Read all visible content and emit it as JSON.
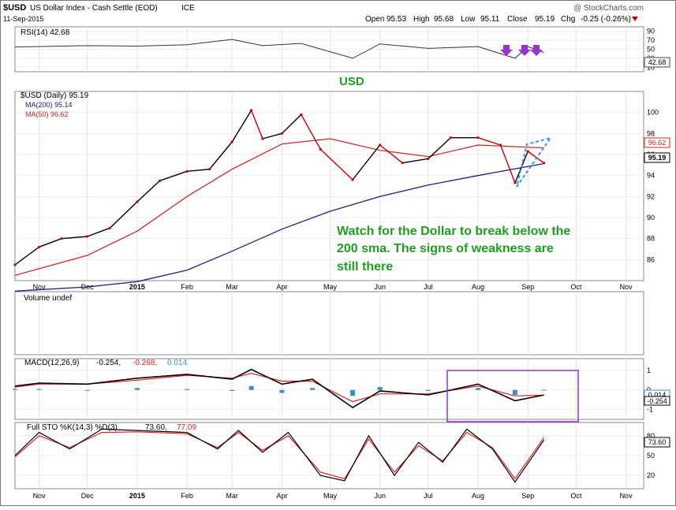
{
  "header": {
    "symbol": "$USD",
    "name": "US Dollar Index - Cash Settle (EOD)",
    "exchange": "ICE",
    "date": "11-Sep-2015",
    "source": "@ StockCharts.com",
    "open_label": "Open",
    "open": "95.53",
    "high_label": "High",
    "high": "95.68",
    "low_label": "Low",
    "low": "95.11",
    "close_label": "Close",
    "close": "95.19",
    "chg_label": "Chg",
    "chg": "-0.25 (-0.26%)"
  },
  "colors": {
    "price_up": "#000000",
    "price_down": "#cc0000",
    "ma200": "#1a237e",
    "ma50": "#cc2222",
    "macd": "#000000",
    "signal": "#dd2222",
    "histogram": "#3b8fc4",
    "annotation": "#1e9e1e",
    "arrows": "#9933cc",
    "triangle": "#3399dd"
  },
  "annotations": {
    "usd_label": "USD",
    "watch_line1": "Watch for the Dollar to break below the",
    "watch_line2": "200 sma.  The signs of weakness are",
    "watch_line3": "still there"
  },
  "rsi_panel": {
    "legend": "RSI(14) 42.68",
    "last_value": "42.68",
    "ticks": [
      "90",
      "70",
      "50",
      "30",
      "10"
    ]
  },
  "price_panel": {
    "legend_main": "$USD (Daily) 95.19",
    "legend_ma200": "MA(200) 95.14",
    "legend_ma50": "MA(50) 96.62",
    "last_ma50": "96.62",
    "last_close": "95.19",
    "ticks": [
      "100",
      "98",
      "96",
      "94",
      "92",
      "90",
      "88",
      "86"
    ]
  },
  "volume_panel": {
    "legend": "Volume undef"
  },
  "macd_panel": {
    "legend_name": "MACD(12,26,9)",
    "legend_macd": "-0.254,",
    "legend_signal": "-0.268,",
    "legend_hist": "0.014",
    "last_hist": "0.014",
    "last_macd": "-0.254",
    "ticks": [
      "1",
      "0",
      "-1"
    ]
  },
  "sto_panel": {
    "legend_name": "Full STO %K(14,3) %D(3)",
    "legend_k": "73.60,",
    "legend_d": "77.09",
    "last_value": "73.60",
    "ticks": [
      "80",
      "50",
      "20"
    ]
  },
  "x_axis_labels": [
    "Nov",
    "Dec",
    "2015",
    "Feb",
    "Mar",
    "Apr",
    "May",
    "Jun",
    "Jul",
    "Aug",
    "Sep",
    "Oct",
    "Nov"
  ],
  "chart_data": {
    "type": "line",
    "title": "$USD US Dollar Index - Cash Settle (EOD) ICE",
    "x_axis": "date (Oct 2014 – Nov 2015)",
    "price": {
      "name": "$USD (Daily)",
      "ylim": [
        84,
        102
      ],
      "x": [
        "2014-10-17",
        "2014-11-01",
        "2014-11-15",
        "2014-12-01",
        "2014-12-15",
        "2015-01-01",
        "2015-01-15",
        "2015-02-01",
        "2015-02-15",
        "2015-03-01",
        "2015-03-13",
        "2015-03-20",
        "2015-04-01",
        "2015-04-13",
        "2015-04-25",
        "2015-05-15",
        "2015-06-01",
        "2015-06-15",
        "2015-07-01",
        "2015-07-15",
        "2015-08-01",
        "2015-08-15",
        "2015-08-24",
        "2015-09-01",
        "2015-09-11"
      ],
      "values": [
        85.5,
        87.2,
        88.0,
        88.2,
        89.0,
        91.5,
        93.5,
        94.4,
        94.6,
        97.2,
        100.2,
        97.5,
        98.0,
        99.8,
        96.5,
        93.6,
        96.9,
        95.2,
        95.6,
        97.6,
        97.6,
        96.9,
        93.3,
        96.3,
        95.19
      ]
    },
    "ma200": {
      "name": "MA(200)",
      "x": [
        "2014-10-17",
        "2014-12-01",
        "2015-01-01",
        "2015-02-01",
        "2015-03-01",
        "2015-04-01",
        "2015-05-01",
        "2015-06-01",
        "2015-07-01",
        "2015-08-01",
        "2015-09-11"
      ],
      "values": [
        83.0,
        83.4,
        83.9,
        85.0,
        86.8,
        88.9,
        90.6,
        92.0,
        93.1,
        94.0,
        95.14
      ]
    },
    "ma50": {
      "name": "MA(50)",
      "x": [
        "2014-10-17",
        "2014-12-01",
        "2015-01-01",
        "2015-02-01",
        "2015-03-01",
        "2015-04-01",
        "2015-05-01",
        "2015-06-01",
        "2015-07-01",
        "2015-08-01",
        "2015-09-11"
      ],
      "values": [
        84.5,
        86.4,
        88.7,
        92.0,
        94.6,
        97.0,
        97.5,
        96.4,
        95.8,
        96.9,
        96.62
      ]
    },
    "rsi": {
      "name": "RSI(14)",
      "ylim": [
        0,
        100
      ],
      "x": [
        "2014-10-17",
        "2014-12-01",
        "2015-01-01",
        "2015-02-01",
        "2015-03-01",
        "2015-03-20",
        "2015-04-13",
        "2015-05-15",
        "2015-06-01",
        "2015-07-01",
        "2015-08-01",
        "2015-08-24",
        "2015-09-01",
        "2015-09-11"
      ],
      "values": [
        55,
        58,
        57,
        60,
        72,
        58,
        63,
        30,
        62,
        52,
        56,
        30,
        56,
        42.68
      ]
    },
    "macd": {
      "ylim": [
        -1.5,
        1.6
      ],
      "x": [
        "2014-10-17",
        "2014-11-01",
        "2014-12-01",
        "2015-01-01",
        "2015-02-01",
        "2015-03-01",
        "2015-03-13",
        "2015-04-01",
        "2015-04-20",
        "2015-05-15",
        "2015-06-01",
        "2015-07-01",
        "2015-08-01",
        "2015-08-24",
        "2015-09-11"
      ],
      "macd": [
        0.2,
        0.35,
        0.3,
        0.6,
        0.8,
        0.55,
        1.05,
        0.3,
        0.55,
        -0.9,
        -0.05,
        -0.25,
        0.3,
        -0.55,
        -0.254
      ],
      "signal": [
        0.15,
        0.3,
        0.3,
        0.5,
        0.75,
        0.6,
        0.85,
        0.45,
        0.45,
        -0.6,
        -0.2,
        -0.2,
        0.2,
        -0.3,
        -0.268
      ],
      "histogram": [
        0.05,
        0.05,
        0.0,
        0.1,
        0.05,
        -0.05,
        0.2,
        -0.15,
        0.1,
        -0.3,
        0.15,
        -0.05,
        0.1,
        -0.25,
        0.014
      ]
    },
    "stochastic": {
      "ylim": [
        0,
        100
      ],
      "x": [
        "2014-10-17",
        "2014-11-01",
        "2014-11-20",
        "2014-12-10",
        "2015-01-01",
        "2015-02-01",
        "2015-02-20",
        "2015-03-05",
        "2015-03-20",
        "2015-04-05",
        "2015-04-25",
        "2015-05-10",
        "2015-05-25",
        "2015-06-10",
        "2015-06-25",
        "2015-07-10",
        "2015-07-25",
        "2015-08-10",
        "2015-08-24",
        "2015-09-11"
      ],
      "k": [
        50,
        85,
        60,
        90,
        88,
        85,
        60,
        88,
        55,
        85,
        20,
        12,
        80,
        20,
        70,
        40,
        90,
        60,
        10,
        73.6
      ],
      "d": [
        48,
        80,
        62,
        85,
        86,
        83,
        62,
        85,
        58,
        80,
        25,
        15,
        75,
        25,
        65,
        42,
        85,
        62,
        15,
        77.09
      ]
    }
  }
}
